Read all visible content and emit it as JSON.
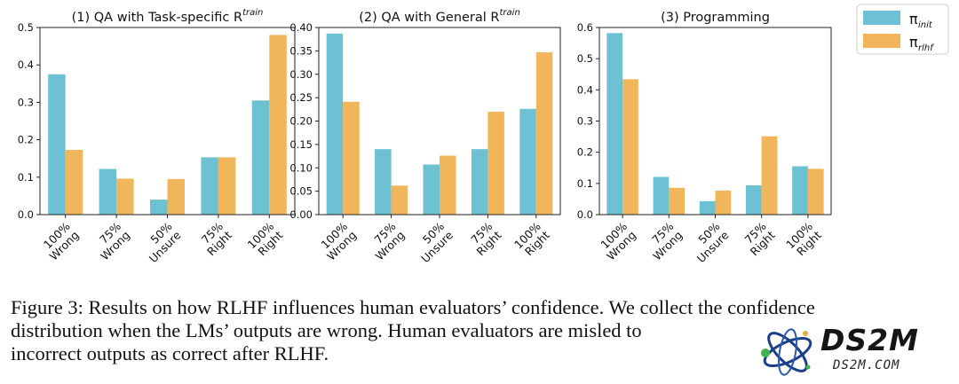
{
  "chart_data": [
    {
      "type": "bar",
      "title": "(1) QA with Task-specific R",
      "title_superscript": "train",
      "categories": [
        [
          "100%",
          "Wrong"
        ],
        [
          "75%",
          "Wrong"
        ],
        [
          "50%",
          "Unsure"
        ],
        [
          "75%",
          "Right"
        ],
        [
          "100%",
          "Right"
        ]
      ],
      "series": [
        {
          "name": "π_init",
          "values": [
            0.375,
            0.122,
            0.04,
            0.153,
            0.305
          ]
        },
        {
          "name": "π_rlhf",
          "values": [
            0.173,
            0.096,
            0.095,
            0.153,
            0.48
          ]
        }
      ],
      "ylim": [
        0,
        0.5
      ],
      "yticks": [
        "0.0",
        "0.1",
        "0.2",
        "0.3",
        "0.4",
        "0.5"
      ],
      "ytick_values": [
        0,
        0.1,
        0.2,
        0.3,
        0.4,
        0.5
      ],
      "xlabel": "",
      "ylabel": ""
    },
    {
      "type": "bar",
      "title": "(2) QA with General R",
      "title_superscript": "train",
      "categories": [
        [
          "100%",
          "Wrong"
        ],
        [
          "75%",
          "Wrong"
        ],
        [
          "50%",
          "Unsure"
        ],
        [
          "75%",
          "Right"
        ],
        [
          "100%",
          "Right"
        ]
      ],
      "series": [
        {
          "name": "π_init",
          "values": [
            0.387,
            0.14,
            0.107,
            0.14,
            0.226
          ]
        },
        {
          "name": "π_rlhf",
          "values": [
            0.241,
            0.062,
            0.126,
            0.22,
            0.347
          ]
        }
      ],
      "ylim": [
        0,
        0.4
      ],
      "yticks": [
        "0.00",
        "0.05",
        "0.10",
        "0.15",
        "0.20",
        "0.25",
        "0.30",
        "0.35",
        "0.40"
      ],
      "ytick_values": [
        0,
        0.05,
        0.1,
        0.15,
        0.2,
        0.25,
        0.3,
        0.35,
        0.4
      ],
      "xlabel": "",
      "ylabel": ""
    },
    {
      "type": "bar",
      "title": "(3) Programming",
      "title_superscript": "",
      "categories": [
        [
          "100%",
          "Wrong"
        ],
        [
          "75%",
          "Wrong"
        ],
        [
          "50%",
          "Unsure"
        ],
        [
          "75%",
          "Right"
        ],
        [
          "100%",
          "Right"
        ]
      ],
      "series": [
        {
          "name": "π_init",
          "values": [
            0.582,
            0.121,
            0.043,
            0.094,
            0.155
          ]
        },
        {
          "name": "π_rlhf",
          "values": [
            0.434,
            0.086,
            0.077,
            0.251,
            0.147
          ]
        }
      ],
      "ylim": [
        0,
        0.6
      ],
      "yticks": [
        "0.0",
        "0.1",
        "0.2",
        "0.3",
        "0.4",
        "0.5",
        "0.6"
      ],
      "ytick_values": [
        0,
        0.1,
        0.2,
        0.3,
        0.4,
        0.5,
        0.6
      ],
      "xlabel": "",
      "ylabel": ""
    }
  ],
  "legend": {
    "placement": "top-right",
    "entries": [
      {
        "symbol": "π",
        "subscript": "init",
        "color": "#6ec1d2"
      },
      {
        "symbol": "π",
        "subscript": "rlhf",
        "color": "#f1b55b"
      }
    ]
  },
  "caption": {
    "line1": "Figure 3: Results on how RLHF influences human evaluators’ confidence. We collect the confidence",
    "line2": "distribution when the LMs’ outputs are wrong. Human evaluators are misled to",
    "line3": "incorrect outputs as correct after RLHF."
  },
  "watermark": {
    "main": "DS2M",
    "sub": "DS2M.COM"
  }
}
